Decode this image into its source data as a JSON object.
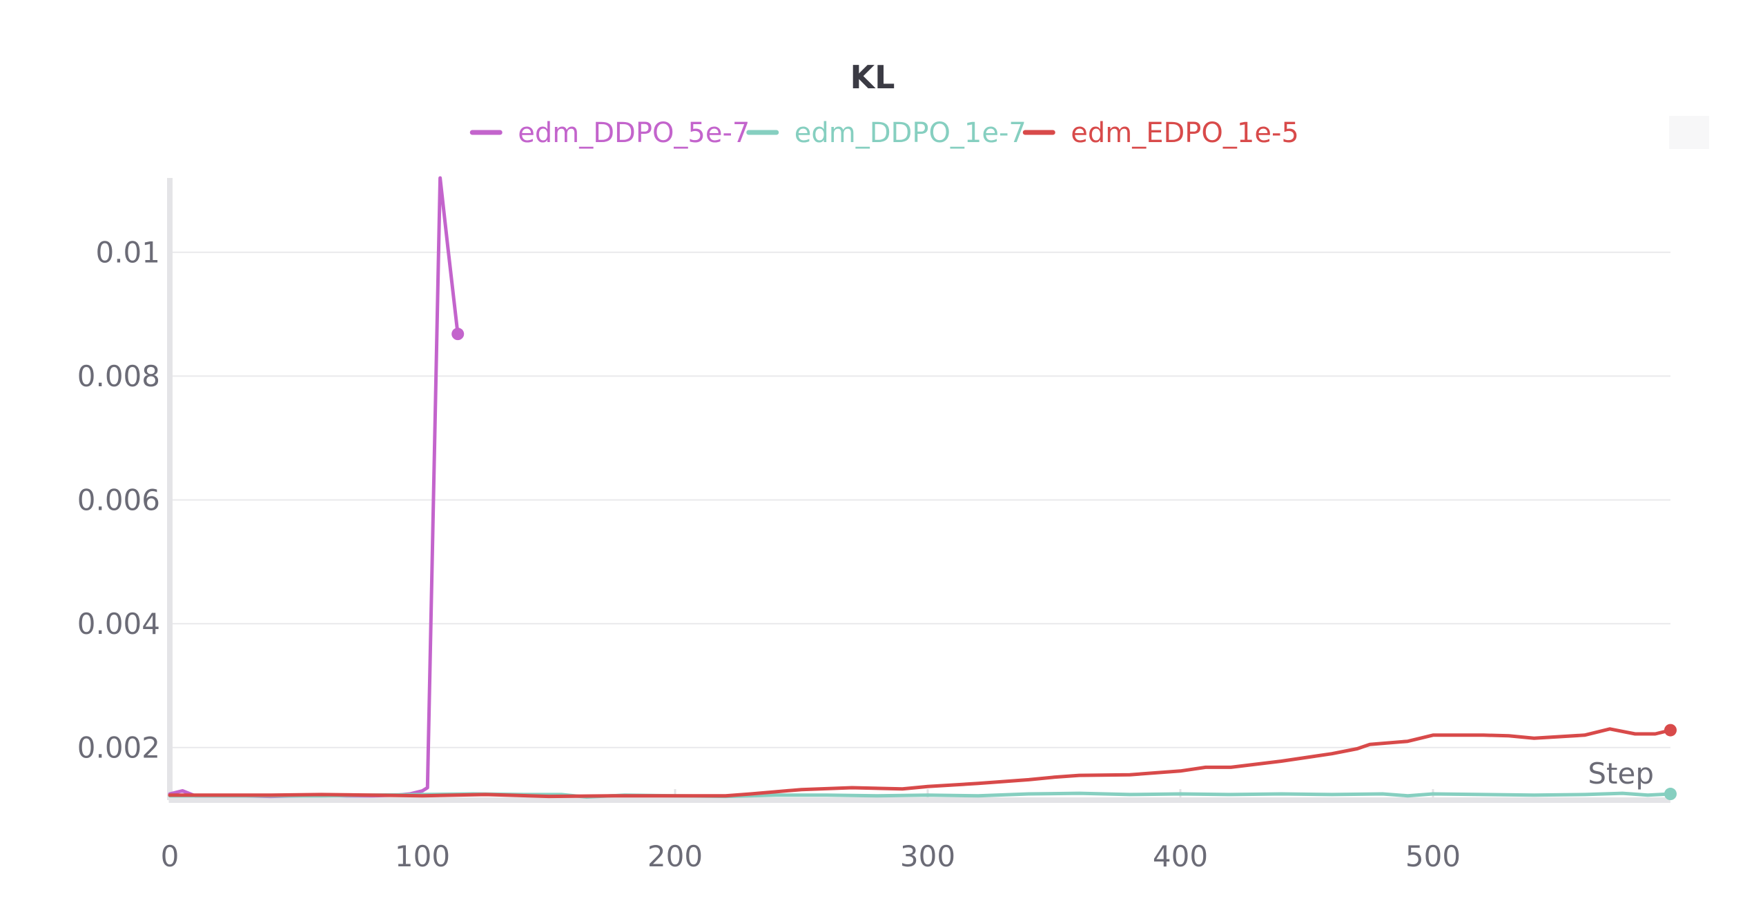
{
  "chart_data": {
    "type": "line",
    "title": "KL",
    "xlabel": "Step",
    "ylabel": "",
    "xlim": [
      0,
      594
    ],
    "ylim": [
      0.00115,
      0.0112
    ],
    "xticks": [
      0,
      100,
      200,
      300,
      400,
      500
    ],
    "xtick_labels": [
      "0",
      "100",
      "200",
      "300",
      "400",
      "500"
    ],
    "yticks": [
      0.002,
      0.004,
      0.006,
      0.008,
      0.01
    ],
    "ytick_labels": [
      "0.002",
      "0.004",
      "0.006",
      "0.008",
      "0.01"
    ],
    "grid": true,
    "legend_position": "top-center",
    "series": [
      {
        "name": "edm_DDPO_5e-7",
        "color": "#c364cc",
        "x": [
          0,
          5,
          10,
          20,
          30,
          40,
          50,
          60,
          70,
          80,
          90,
          95,
          100,
          102,
          107,
          110,
          114
        ],
        "y": [
          0.00125,
          0.0013,
          0.00122,
          0.00122,
          0.00122,
          0.00121,
          0.00122,
          0.00123,
          0.00122,
          0.00122,
          0.00123,
          0.00125,
          0.0013,
          0.00135,
          0.0112,
          0.0101,
          0.00868
        ]
      },
      {
        "name": "edm_DDPO_1e-7",
        "color": "#86cfc0",
        "x": [
          0,
          20,
          40,
          60,
          80,
          100,
          120,
          140,
          155,
          165,
          180,
          200,
          220,
          240,
          260,
          280,
          300,
          320,
          340,
          360,
          380,
          400,
          420,
          440,
          460,
          480,
          490,
          500,
          520,
          540,
          560,
          575,
          585,
          594
        ],
        "y": [
          0.00122,
          0.00122,
          0.00122,
          0.00122,
          0.00123,
          0.00124,
          0.00125,
          0.00124,
          0.00124,
          0.0012,
          0.00123,
          0.00122,
          0.00121,
          0.00123,
          0.00123,
          0.00122,
          0.00123,
          0.00122,
          0.00125,
          0.00126,
          0.00124,
          0.00125,
          0.00124,
          0.00125,
          0.00124,
          0.00125,
          0.00122,
          0.00125,
          0.00124,
          0.00123,
          0.00124,
          0.00126,
          0.00123,
          0.00125
        ]
      },
      {
        "name": "edm_EDPO_1e-5",
        "color": "#d84a4a",
        "x": [
          0,
          20,
          40,
          60,
          80,
          100,
          125,
          150,
          175,
          200,
          220,
          230,
          250,
          270,
          290,
          300,
          320,
          340,
          350,
          360,
          380,
          400,
          410,
          420,
          440,
          460,
          470,
          475,
          490,
          500,
          520,
          530,
          540,
          560,
          570,
          580,
          588,
          594
        ],
        "y": [
          0.00123,
          0.00123,
          0.00123,
          0.00124,
          0.00123,
          0.00122,
          0.00124,
          0.00121,
          0.00122,
          0.00122,
          0.00122,
          0.00125,
          0.00132,
          0.00135,
          0.00133,
          0.00137,
          0.00142,
          0.00148,
          0.00152,
          0.00155,
          0.00156,
          0.00162,
          0.00168,
          0.00168,
          0.00178,
          0.0019,
          0.00198,
          0.00205,
          0.0021,
          0.0022,
          0.0022,
          0.00219,
          0.00215,
          0.0022,
          0.0023,
          0.00222,
          0.00222,
          0.00228
        ]
      }
    ]
  }
}
